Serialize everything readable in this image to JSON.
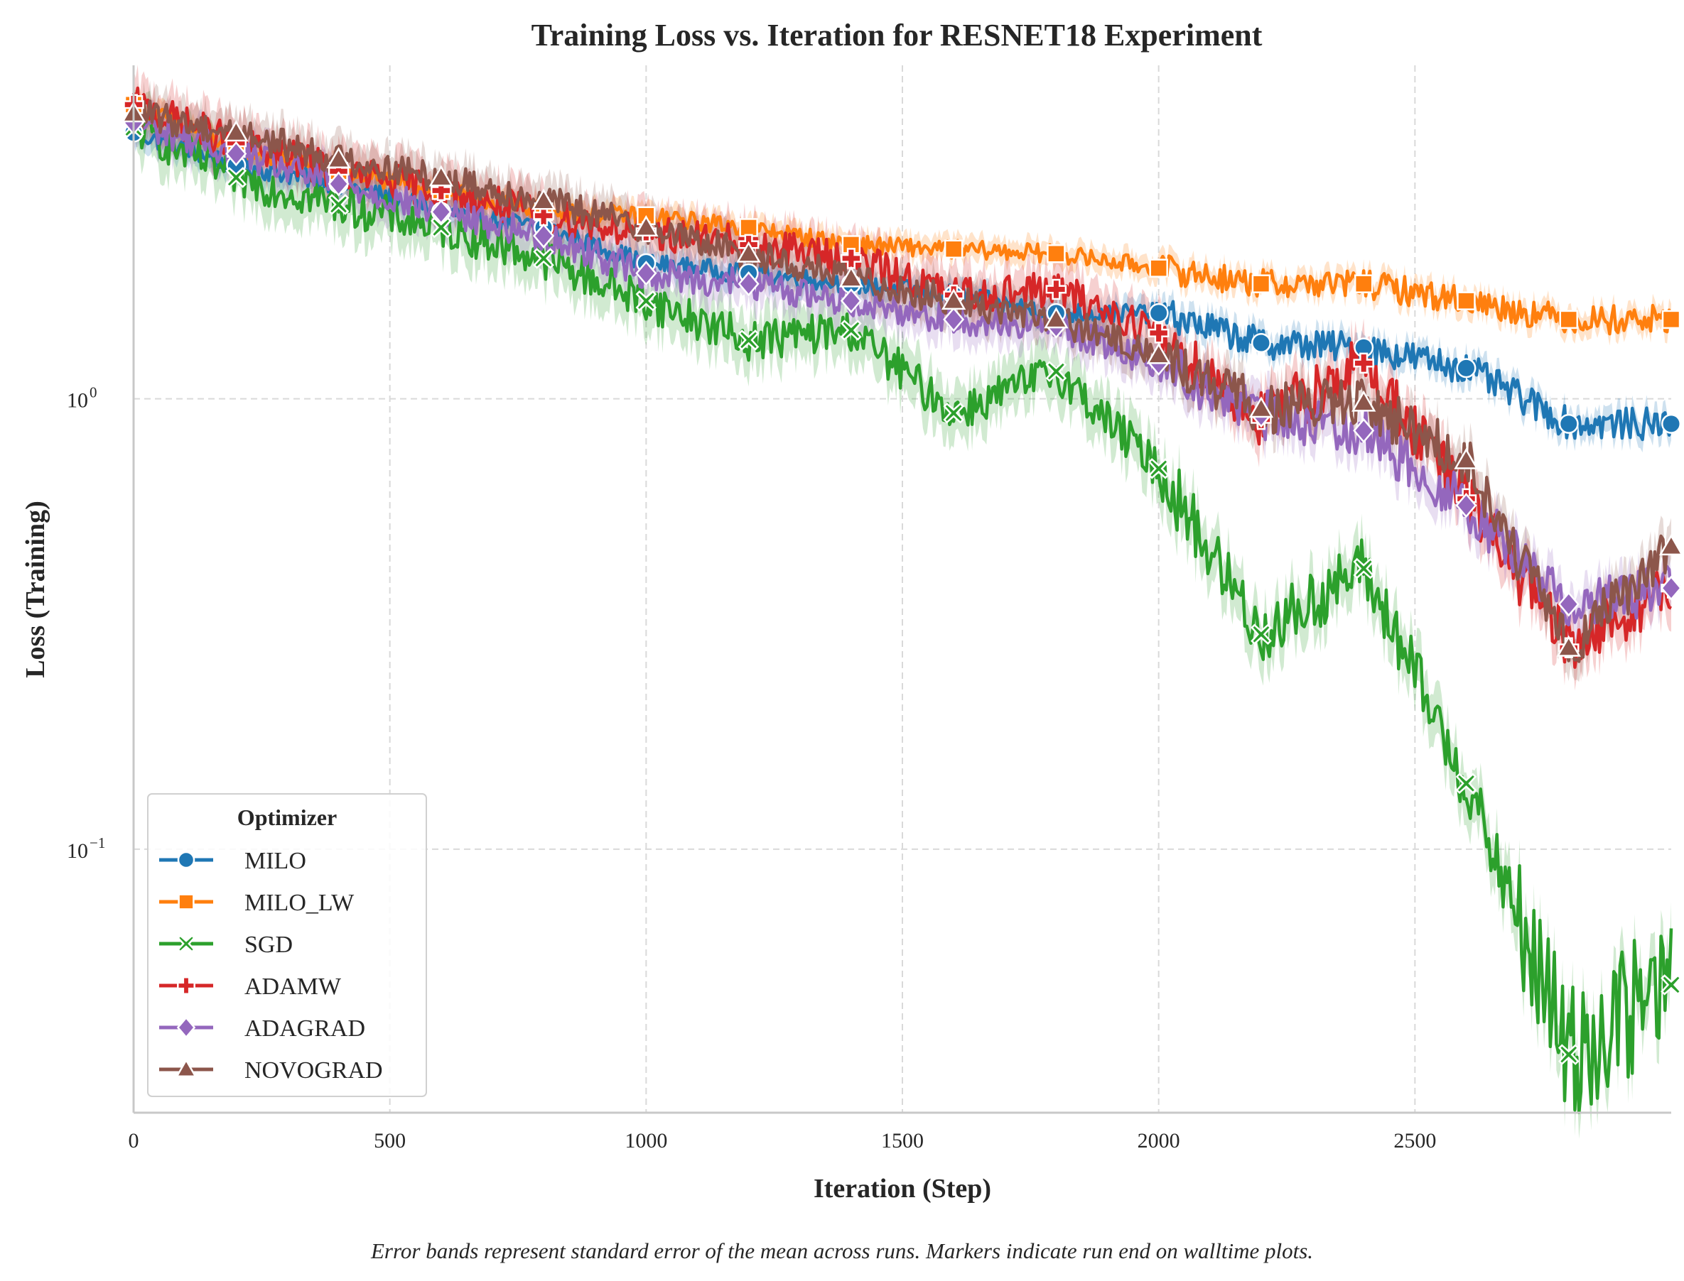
{
  "chart_data": {
    "type": "line",
    "title": "Training Loss vs. Iteration for RESNET18 Experiment",
    "xlabel": "Iteration (Step)",
    "ylabel": "Loss (Training)",
    "caption": "Error bands represent standard error of the mean across runs. Markers indicate run end on walltime plots.",
    "xlim": [
      0,
      3000
    ],
    "ylim": [
      0.026,
      5.5
    ],
    "yscale": "log",
    "grid": true,
    "legend": {
      "title": "Optimizer",
      "placement": "lower-left"
    },
    "x_ticks": [
      0,
      500,
      1000,
      1500,
      2000,
      2500
    ],
    "x_tick_labels": [
      "0",
      "500",
      "1000",
      "1500",
      "2000",
      "2500"
    ],
    "y_ticks": [
      0.1,
      1
    ],
    "y_tick_labels": [
      {
        "base": "10",
        "exp": "−1"
      },
      {
        "base": "10",
        "exp": "0"
      }
    ],
    "marker_x": [
      0,
      200,
      400,
      600,
      800,
      1000,
      1200,
      1400,
      1600,
      1800,
      2000,
      2200,
      2400,
      2600,
      2800,
      3000
    ],
    "series": [
      {
        "name": "MILO",
        "color": "#1f77b4",
        "marker": "circle",
        "values": [
          3.9,
          3.3,
          3.0,
          2.6,
          2.4,
          2.0,
          1.9,
          1.8,
          1.7,
          1.55,
          1.55,
          1.33,
          1.3,
          1.17,
          0.88,
          0.88
        ]
      },
      {
        "name": "MILO_LW",
        "color": "#ff7f0e",
        "marker": "square",
        "values": [
          4.5,
          3.6,
          3.2,
          2.9,
          2.6,
          2.55,
          2.4,
          2.2,
          2.15,
          2.1,
          1.95,
          1.8,
          1.8,
          1.65,
          1.5,
          1.5
        ]
      },
      {
        "name": "SGD",
        "color": "#2ca02c",
        "marker": "x",
        "values": [
          4.0,
          3.1,
          2.7,
          2.4,
          2.05,
          1.65,
          1.35,
          1.42,
          0.93,
          1.15,
          0.7,
          0.3,
          0.42,
          0.14,
          0.035,
          0.05
        ]
      },
      {
        "name": "ADAMW",
        "color": "#d62728",
        "marker": "plus",
        "values": [
          4.5,
          3.7,
          3.2,
          2.9,
          2.55,
          2.35,
          2.2,
          2.05,
          1.7,
          1.75,
          1.4,
          0.9,
          1.2,
          0.6,
          0.28,
          0.38
        ]
      },
      {
        "name": "ADAGRAD",
        "color": "#9467bd",
        "marker": "diamond",
        "values": [
          4.1,
          3.5,
          3.0,
          2.6,
          2.3,
          1.9,
          1.8,
          1.65,
          1.5,
          1.45,
          1.2,
          0.92,
          0.85,
          0.58,
          0.35,
          0.38
        ]
      },
      {
        "name": "NOVOGRAD",
        "color": "#8c564b",
        "marker": "triangle",
        "values": [
          4.3,
          3.9,
          3.4,
          3.1,
          2.75,
          2.4,
          2.1,
          1.85,
          1.65,
          1.5,
          1.25,
          0.95,
          0.98,
          0.73,
          0.28,
          0.47
        ]
      }
    ]
  }
}
